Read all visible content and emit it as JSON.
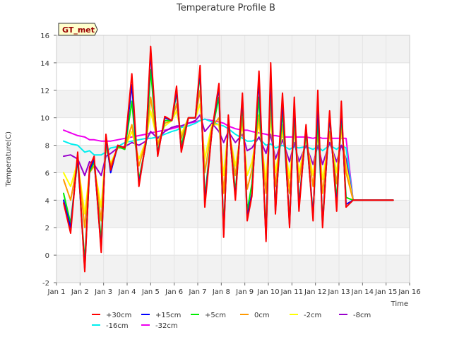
{
  "chart_data": {
    "type": "line",
    "title": "Temperature Profile B",
    "xlabel": "Time",
    "ylabel": "Temperature(C)",
    "badge": "GT_met",
    "xlim": [
      1,
      16
    ],
    "ylim": [
      -2,
      16
    ],
    "xticks": [
      {
        "value": 1,
        "label": "Jan 1"
      },
      {
        "value": 2,
        "label": "Jan 2"
      },
      {
        "value": 3,
        "label": "Jan 3"
      },
      {
        "value": 4,
        "label": "Jan 4"
      },
      {
        "value": 5,
        "label": "Jan 5"
      },
      {
        "value": 6,
        "label": "Jan 6"
      },
      {
        "value": 7,
        "label": "Jan 7"
      },
      {
        "value": 8,
        "label": "Jan 8"
      },
      {
        "value": 9,
        "label": "Jan 9"
      },
      {
        "value": 10,
        "label": "Jan 10"
      },
      {
        "value": 11,
        "label": "Jan 11"
      },
      {
        "value": 12,
        "label": "Jan 12"
      },
      {
        "value": 13,
        "label": "Jan 13"
      },
      {
        "value": 14,
        "label": "Jan 14"
      },
      {
        "value": 15,
        "label": "Jan 15"
      },
      {
        "value": 16,
        "label": "Jan 16"
      }
    ],
    "yticks": [
      {
        "value": -2,
        "label": "-2"
      },
      {
        "value": 0,
        "label": "0"
      },
      {
        "value": 2,
        "label": "2"
      },
      {
        "value": 4,
        "label": "4"
      },
      {
        "value": 6,
        "label": "6"
      },
      {
        "value": 8,
        "label": "8"
      },
      {
        "value": 10,
        "label": "10"
      },
      {
        "value": 12,
        "label": "12"
      },
      {
        "value": 14,
        "label": "14"
      },
      {
        "value": 16,
        "label": "16"
      }
    ],
    "x": [
      1.3,
      1.6,
      1.9,
      2.2,
      2.4,
      2.6,
      2.9,
      3.1,
      3.3,
      3.6,
      3.9,
      4.2,
      4.5,
      4.8,
      5.0,
      5.3,
      5.6,
      5.9,
      6.1,
      6.3,
      6.6,
      6.9,
      7.1,
      7.3,
      7.6,
      7.9,
      8.1,
      8.3,
      8.6,
      8.9,
      9.1,
      9.3,
      9.6,
      9.9,
      10.1,
      10.3,
      10.6,
      10.9,
      11.1,
      11.3,
      11.6,
      11.9,
      12.1,
      12.3,
      12.6,
      12.9,
      13.1,
      13.3,
      13.6,
      13.9,
      14.1,
      14.3,
      14.6,
      14.9,
      15.1,
      15.3
    ],
    "series": [
      {
        "name": "+30cm",
        "color": "#ff0000",
        "values": [
          3.8,
          1.6,
          7.5,
          -1.2,
          6.4,
          7.2,
          0.2,
          8.8,
          6.2,
          8.0,
          7.8,
          13.2,
          5.0,
          8.3,
          15.2,
          7.2,
          10.1,
          9.8,
          12.3,
          7.5,
          10.0,
          10.0,
          13.8,
          3.5,
          9.0,
          12.5,
          1.3,
          10.2,
          4.0,
          11.8,
          2.5,
          4.3,
          13.4,
          1.0,
          14.0,
          3.0,
          11.8,
          2.0,
          11.5,
          3.2,
          9.5,
          2.5,
          12.0,
          2.0,
          10.5,
          3.2,
          11.2,
          3.5,
          4.0,
          4.0,
          4.0,
          4.0,
          4.0,
          4.0,
          4.0,
          4.0
        ]
      },
      {
        "name": "+15cm",
        "color": "#0000ff",
        "values": [
          4.0,
          2.0,
          7.2,
          -1.0,
          6.2,
          7.0,
          0.4,
          8.6,
          6.0,
          8.0,
          7.8,
          12.4,
          5.2,
          8.2,
          14.8,
          7.3,
          10.0,
          9.8,
          12.0,
          7.6,
          10.0,
          10.0,
          13.5,
          3.8,
          9.0,
          12.2,
          1.5,
          10.0,
          4.2,
          11.5,
          2.8,
          4.5,
          12.8,
          1.2,
          13.2,
          3.2,
          11.2,
          2.2,
          11.0,
          3.5,
          9.3,
          2.8,
          11.0,
          2.2,
          10.2,
          3.5,
          10.8,
          3.7,
          4.0,
          4.0,
          4.0,
          4.0,
          4.0,
          4.0,
          4.0,
          4.0
        ]
      },
      {
        "name": "+5cm",
        "color": "#00ee00",
        "values": [
          4.5,
          2.3,
          7.0,
          -0.5,
          6.0,
          6.8,
          1.0,
          8.3,
          6.2,
          7.9,
          7.7,
          11.2,
          5.5,
          8.1,
          13.5,
          7.5,
          9.8,
          9.8,
          11.8,
          8.0,
          10.0,
          10.0,
          13.2,
          4.2,
          9.0,
          11.5,
          2.0,
          9.8,
          4.6,
          11.0,
          3.2,
          5.2,
          11.5,
          1.8,
          12.4,
          3.5,
          10.5,
          2.5,
          10.5,
          3.8,
          9.0,
          3.0,
          10.0,
          2.5,
          10.0,
          4.0,
          10.3,
          4.2,
          4.0,
          4.0,
          4.0,
          4.0,
          4.0,
          4.0,
          4.0,
          4.0
        ]
      },
      {
        "name": "0cm",
        "color": "#ff9900",
        "values": [
          5.5,
          4.0,
          6.8,
          2.0,
          6.0,
          6.5,
          2.5,
          8.0,
          6.5,
          7.8,
          7.8,
          9.5,
          6.5,
          8.3,
          11.5,
          8.0,
          9.6,
          9.8,
          11.0,
          8.5,
          10.0,
          10.0,
          12.0,
          6.0,
          9.3,
          10.0,
          4.5,
          9.5,
          5.8,
          10.0,
          4.8,
          6.2,
          10.2,
          4.5,
          11.0,
          5.0,
          9.5,
          4.5,
          9.5,
          5.3,
          8.7,
          5.0,
          9.0,
          4.5,
          9.0,
          5.2,
          9.5,
          6.0,
          4.0,
          4.0,
          4.0,
          4.0,
          4.0,
          4.0,
          4.0,
          4.0
        ]
      },
      {
        "name": "-2cm",
        "color": "#ffff00",
        "values": [
          6.0,
          5.0,
          6.8,
          3.0,
          6.0,
          6.5,
          3.5,
          7.8,
          6.7,
          7.8,
          7.8,
          9.0,
          7.0,
          8.3,
          10.5,
          8.2,
          9.4,
          9.8,
          10.5,
          8.8,
          10.0,
          10.0,
          11.0,
          7.0,
          9.5,
          9.5,
          5.8,
          9.3,
          6.5,
          9.5,
          5.8,
          6.8,
          9.6,
          5.5,
          10.0,
          6.0,
          9.0,
          5.6,
          9.0,
          6.0,
          8.4,
          5.8,
          8.7,
          5.5,
          8.8,
          6.0,
          9.0,
          6.5,
          4.0,
          4.0,
          4.0,
          4.0,
          4.0,
          4.0,
          4.0,
          4.0
        ]
      },
      {
        "name": "-8cm",
        "color": "#9900cc",
        "values": [
          7.2,
          7.3,
          7.0,
          5.8,
          6.8,
          6.6,
          5.8,
          7.2,
          7.4,
          7.8,
          7.9,
          8.2,
          8.0,
          8.3,
          9.0,
          8.5,
          9.0,
          9.3,
          9.4,
          9.4,
          9.6,
          9.8,
          10.2,
          9.0,
          9.6,
          9.0,
          8.2,
          9.0,
          8.2,
          8.8,
          7.6,
          7.8,
          8.6,
          7.4,
          8.8,
          7.0,
          8.4,
          6.8,
          8.2,
          6.8,
          8.0,
          6.6,
          8.0,
          6.6,
          8.2,
          6.8,
          8.0,
          7.0,
          4.0,
          4.0,
          4.0,
          4.0,
          4.0,
          4.0,
          4.0,
          4.0
        ]
      },
      {
        "name": "-16cm",
        "color": "#00eeee",
        "values": [
          8.3,
          8.1,
          8.0,
          7.5,
          7.6,
          7.3,
          7.3,
          7.5,
          7.8,
          7.9,
          8.2,
          8.3,
          8.4,
          8.5,
          8.5,
          8.6,
          8.8,
          9.0,
          9.1,
          9.3,
          9.4,
          9.6,
          9.8,
          9.9,
          9.7,
          9.5,
          9.4,
          9.2,
          8.8,
          8.5,
          8.3,
          8.3,
          8.5,
          8.0,
          8.1,
          7.8,
          8.0,
          7.7,
          7.9,
          7.8,
          7.9,
          7.7,
          7.9,
          7.6,
          8.0,
          7.7,
          8.0,
          7.8,
          4.0,
          4.0,
          4.0,
          4.0,
          4.0,
          4.0,
          4.0,
          4.0
        ]
      },
      {
        "name": "-32cm",
        "color": "#ee00ee",
        "values": [
          9.1,
          8.9,
          8.7,
          8.6,
          8.4,
          8.4,
          8.3,
          8.3,
          8.3,
          8.4,
          8.5,
          8.6,
          8.7,
          8.8,
          8.9,
          9.0,
          9.1,
          9.2,
          9.3,
          9.4,
          9.6,
          9.7,
          9.8,
          9.9,
          9.8,
          9.7,
          9.6,
          9.4,
          9.2,
          9.1,
          9.1,
          9.0,
          8.9,
          8.8,
          8.7,
          8.7,
          8.6,
          8.6,
          8.6,
          8.6,
          8.6,
          8.5,
          8.6,
          8.5,
          8.5,
          8.5,
          8.5,
          8.5,
          4.0,
          4.0,
          4.0,
          4.0,
          4.0,
          4.0,
          4.0,
          4.0
        ]
      }
    ]
  }
}
